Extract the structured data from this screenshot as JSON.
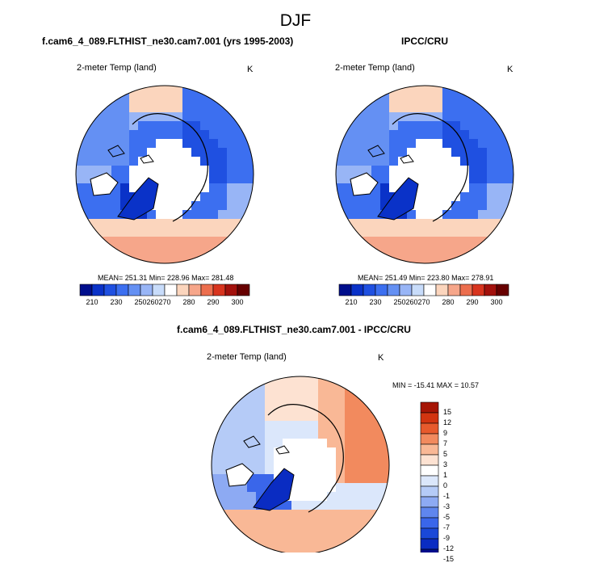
{
  "figure": {
    "title": "DJF",
    "colors": {
      "abs_palette": [
        "#000e8c",
        "#0a32c8",
        "#1f50e1",
        "#3c6ff0",
        "#6490f3",
        "#98b5f6",
        "#c8dcfa",
        "#ffffff",
        "#fbd5bd",
        "#f6a68a",
        "#ec6e4e",
        "#d8341e",
        "#a3110c",
        "#670000"
      ],
      "diff_palette": [
        "#000e8c",
        "#0a2cc2",
        "#1a48d8",
        "#3a66ea",
        "#5f86ee",
        "#8daaf3",
        "#b5cbf7",
        "#dbe7fb",
        "#ffffff",
        "#fde2d2",
        "#f9b896",
        "#f28a5e",
        "#e75a2c",
        "#d23410",
        "#a61505"
      ]
    }
  },
  "chart_data": [
    {
      "type": "heatmap",
      "projection": "north-polar-stereographic",
      "title": "f.cam6_4_089.FLTHIST_ne30.cam7.001 (yrs 1995-2003)",
      "variable": "2-meter Temp (land)",
      "units": "K",
      "stats": "MEAN= 251.31   Min= 228.96   Max= 281.48",
      "mean": 251.31,
      "min": 228.96,
      "max": 281.48,
      "colorbar": {
        "orientation": "horizontal",
        "ticks": [
          "210",
          "230",
          "250",
          "260",
          "270",
          "280",
          "290",
          "300"
        ]
      }
    },
    {
      "type": "heatmap",
      "projection": "north-polar-stereographic",
      "title": "IPCC/CRU",
      "variable": "2-meter Temp (land)",
      "units": "K",
      "stats": "MEAN= 251.49   Min= 223.80   Max= 278.91",
      "mean": 251.49,
      "min": 223.8,
      "max": 278.91,
      "colorbar": {
        "orientation": "horizontal",
        "ticks": [
          "210",
          "230",
          "250",
          "260",
          "270",
          "280",
          "290",
          "300"
        ]
      }
    },
    {
      "type": "heatmap",
      "projection": "north-polar-stereographic",
      "title": "f.cam6_4_089.FLTHIST_ne30.cam7.001 - IPCC/CRU",
      "variable": "2-meter Temp (land)",
      "units": "K",
      "stats": "MIN = -15.41  MAX =  10.57",
      "min": -15.41,
      "max": 10.57,
      "colorbar": {
        "orientation": "vertical",
        "ticks": [
          "15",
          "12",
          "9",
          "7",
          "5",
          "3",
          "1",
          "0",
          "-1",
          "-3",
          "-5",
          "-7",
          "-9",
          "-12",
          "-15"
        ]
      }
    }
  ]
}
